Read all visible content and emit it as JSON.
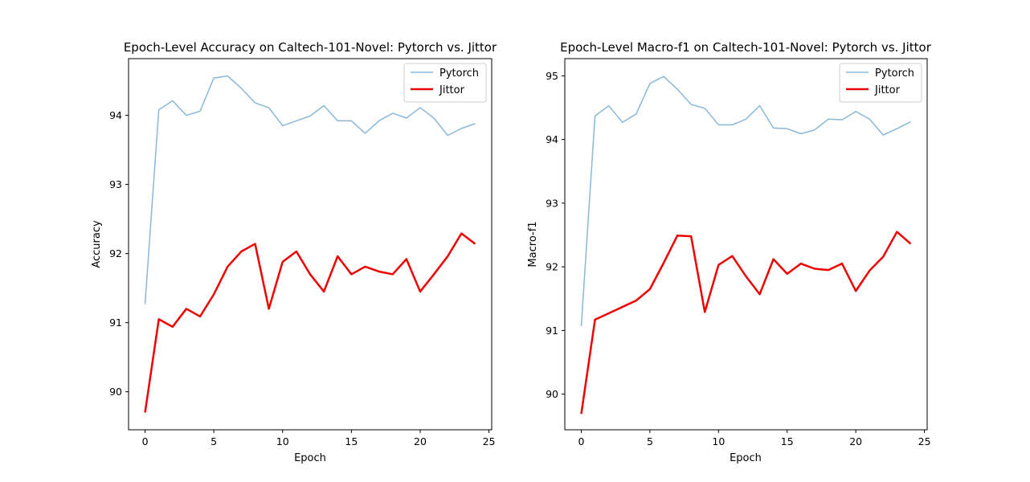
{
  "chart_data": [
    {
      "type": "line",
      "title": "Epoch-Level Accuracy on Caltech-101-Novel: Pytorch vs. Jittor",
      "xlabel": "Epoch",
      "ylabel": "Accuracy",
      "xlim": [
        -1.2,
        25.2
      ],
      "ylim": [
        89.45,
        94.82
      ],
      "xticks": [
        0,
        5,
        10,
        15,
        20,
        25
      ],
      "yticks": [
        90,
        91,
        92,
        93,
        94
      ],
      "legend_position": "top-right",
      "grid": false,
      "x": [
        0,
        1,
        2,
        3,
        4,
        5,
        6,
        7,
        8,
        9,
        10,
        11,
        12,
        13,
        14,
        15,
        16,
        17,
        18,
        19,
        20,
        21,
        22,
        23,
        24
      ],
      "series": [
        {
          "name": "Pytorch",
          "color": "#8ab8d8",
          "values": [
            91.27,
            94.08,
            94.21,
            94.0,
            94.06,
            94.54,
            94.57,
            94.39,
            94.18,
            94.11,
            93.85,
            93.92,
            93.99,
            94.14,
            93.92,
            93.92,
            93.74,
            93.92,
            94.03,
            93.96,
            94.11,
            93.96,
            93.71,
            93.81,
            93.88
          ]
        },
        {
          "name": "Jittor",
          "color": "#ee0000",
          "values": [
            89.7,
            91.05,
            90.94,
            91.2,
            91.09,
            91.41,
            91.81,
            92.03,
            92.14,
            91.2,
            91.88,
            92.03,
            91.7,
            91.45,
            91.96,
            91.7,
            91.81,
            91.74,
            91.7,
            91.92,
            91.45,
            91.7,
            91.96,
            92.29,
            92.14
          ]
        }
      ]
    },
    {
      "type": "line",
      "title": "Epoch-Level Macro-f1 on Caltech-101-Novel: Pytorch vs. Jittor",
      "xlabel": "Epoch",
      "ylabel": "Macro-f1",
      "xlim": [
        -1.2,
        25.2
      ],
      "ylim": [
        89.44,
        95.27
      ],
      "xticks": [
        0,
        5,
        10,
        15,
        20,
        25
      ],
      "yticks": [
        90,
        91,
        92,
        93,
        94,
        95
      ],
      "legend_position": "top-right",
      "grid": false,
      "x": [
        0,
        1,
        2,
        3,
        4,
        5,
        6,
        7,
        8,
        9,
        10,
        11,
        12,
        13,
        14,
        15,
        16,
        17,
        18,
        19,
        20,
        21,
        22,
        23,
        24
      ],
      "series": [
        {
          "name": "Pytorch",
          "color": "#8ab8d8",
          "values": [
            91.07,
            94.37,
            94.53,
            94.27,
            94.4,
            94.88,
            94.99,
            94.79,
            94.55,
            94.49,
            94.23,
            94.23,
            94.32,
            94.53,
            94.18,
            94.17,
            94.09,
            94.15,
            94.32,
            94.31,
            94.44,
            94.32,
            94.07,
            94.17,
            94.28
          ]
        },
        {
          "name": "Jittor",
          "color": "#ee0000",
          "values": [
            89.69,
            91.17,
            91.27,
            91.37,
            91.47,
            91.65,
            92.06,
            92.49,
            92.48,
            91.29,
            92.03,
            92.17,
            91.85,
            91.57,
            92.12,
            91.89,
            92.05,
            91.97,
            91.95,
            92.05,
            91.62,
            91.94,
            92.16,
            92.55,
            92.36
          ]
        }
      ]
    }
  ]
}
